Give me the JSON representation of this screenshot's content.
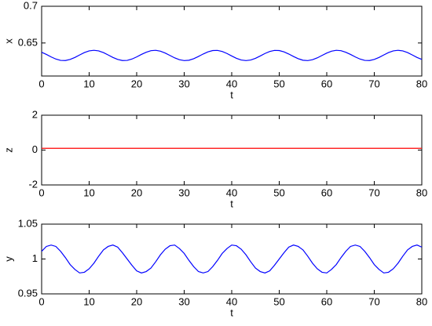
{
  "chart_data": [
    {
      "type": "line",
      "xlabel": "t",
      "ylabel": "x",
      "color": "#0000ff",
      "x": [
        0,
        1,
        2,
        3,
        4,
        5,
        6,
        7,
        8,
        9,
        10,
        11,
        12,
        13,
        14,
        15,
        16,
        17,
        18,
        19,
        20,
        21,
        22,
        23,
        24,
        25,
        26,
        27,
        28,
        29,
        30,
        31,
        32,
        33,
        34,
        35,
        36,
        37,
        38,
        39,
        40,
        41,
        42,
        43,
        44,
        45,
        46,
        47,
        48,
        49,
        50,
        51,
        52,
        53,
        54,
        55,
        56,
        57,
        58,
        59,
        60,
        61,
        62,
        63,
        64,
        65,
        66,
        67,
        68,
        69,
        70,
        71,
        72,
        73,
        74,
        75,
        76,
        77,
        78,
        79,
        80
      ],
      "values": [
        0.6374,
        0.6344,
        0.631,
        0.6281,
        0.6263,
        0.6261,
        0.6276,
        0.6303,
        0.6337,
        0.6369,
        0.6392,
        0.64,
        0.6392,
        0.6369,
        0.6337,
        0.6303,
        0.6276,
        0.6261,
        0.6263,
        0.6281,
        0.631,
        0.6344,
        0.6374,
        0.6395,
        0.64,
        0.6388,
        0.6363,
        0.633,
        0.6297,
        0.6272,
        0.626,
        0.6265,
        0.6286,
        0.6316,
        0.635,
        0.6379,
        0.6397,
        0.6399,
        0.6384,
        0.6357,
        0.6323,
        0.6291,
        0.6268,
        0.626,
        0.6268,
        0.6291,
        0.6323,
        0.6357,
        0.6384,
        0.6399,
        0.6397,
        0.6379,
        0.635,
        0.6316,
        0.6286,
        0.6265,
        0.626,
        0.6272,
        0.6297,
        0.633,
        0.6363,
        0.6388,
        0.64,
        0.6395,
        0.6374,
        0.6344,
        0.631,
        0.6281,
        0.6263,
        0.6261,
        0.6276,
        0.6303,
        0.6337,
        0.6369,
        0.6392,
        0.64,
        0.6392,
        0.6369,
        0.6337,
        0.6303,
        0.6276
      ],
      "xlim": [
        0,
        80
      ],
      "xticks": [
        0,
        10,
        20,
        30,
        40,
        50,
        60,
        70,
        80
      ],
      "ylim": [
        0.605,
        0.7
      ],
      "yticks": [
        0.65,
        0.7
      ]
    },
    {
      "type": "line",
      "xlabel": "t",
      "ylabel": "z",
      "color": "#ff0000",
      "x": [
        0,
        80
      ],
      "values": [
        0.1,
        0.1
      ],
      "xlim": [
        0,
        80
      ],
      "xticks": [
        0,
        10,
        20,
        30,
        40,
        50,
        60,
        70,
        80
      ],
      "ylim": [
        -2,
        2
      ],
      "yticks": [
        -2,
        0,
        2
      ]
    },
    {
      "type": "line",
      "xlabel": "t",
      "ylabel": "y",
      "color": "#0000ff",
      "x": [
        0,
        1,
        2,
        3,
        4,
        5,
        6,
        7,
        8,
        9,
        10,
        11,
        12,
        13,
        14,
        15,
        16,
        17,
        18,
        19,
        20,
        21,
        22,
        23,
        24,
        25,
        26,
        27,
        28,
        29,
        30,
        31,
        32,
        33,
        34,
        35,
        36,
        37,
        38,
        39,
        40,
        41,
        42,
        43,
        44,
        45,
        46,
        47,
        48,
        49,
        50,
        51,
        52,
        53,
        54,
        55,
        56,
        57,
        58,
        59,
        60,
        61,
        62,
        63,
        64,
        65,
        66,
        67,
        68,
        69,
        70,
        71,
        72,
        73,
        74,
        75,
        76,
        77,
        78,
        79,
        80
      ],
      "values": [
        1.011,
        1.018,
        1.02,
        1.018,
        1.011,
        1.002,
        0.992,
        0.985,
        0.98,
        0.981,
        0.986,
        0.994,
        1.004,
        1.013,
        1.018,
        1.02,
        1.017,
        1.009,
        1,
        0.991,
        0.983,
        0.98,
        0.982,
        0.987,
        0.996,
        1.006,
        1.014,
        1.019,
        1.02,
        1.015,
        1.008,
        0.998,
        0.989,
        0.982,
        0.98,
        0.982,
        0.989,
        0.998,
        1.008,
        1.015,
        1.02,
        1.019,
        1.014,
        1.006,
        0.996,
        0.987,
        0.982,
        0.98,
        0.983,
        0.991,
        1,
        1.009,
        1.017,
        1.02,
        1.018,
        1.013,
        1.004,
        0.994,
        0.986,
        0.981,
        0.98,
        0.985,
        0.992,
        1.002,
        1.011,
        1.018,
        1.02,
        1.018,
        1.011,
        1.002,
        0.992,
        0.985,
        0.98,
        0.981,
        0.986,
        0.994,
        1.004,
        1.013,
        1.018,
        1.02,
        1.017
      ],
      "xlim": [
        0,
        80
      ],
      "xticks": [
        0,
        10,
        20,
        30,
        40,
        50,
        60,
        70,
        80
      ],
      "ylim": [
        0.95,
        1.05
      ],
      "yticks": [
        0.95,
        1,
        1.05
      ]
    }
  ]
}
